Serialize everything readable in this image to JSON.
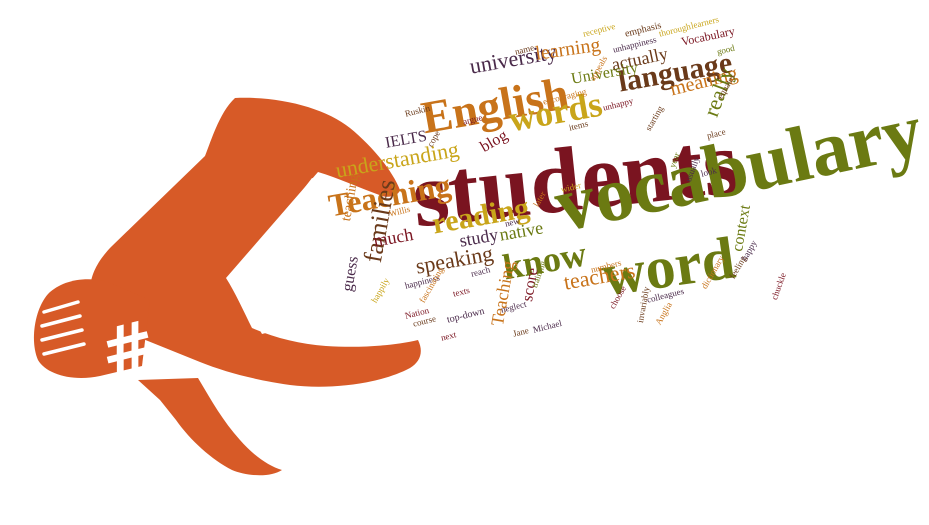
{
  "palette": {
    "megaphone": "#d75a27",
    "maroon": "#7a1420",
    "olive": "#6b7a12",
    "orange": "#c8731a",
    "gold": "#c9a51a",
    "brown": "#6a3a1a",
    "purple": "#4a2a4a"
  },
  "megaphone": {
    "symbol": "#",
    "icon": "megaphone-icon"
  },
  "word_cloud": [
    {
      "text": "students",
      "color": "maroon"
    },
    {
      "text": "vocabulary",
      "color": "olive"
    },
    {
      "text": "English",
      "color": "orange"
    },
    {
      "text": "word",
      "color": "olive"
    },
    {
      "text": "words",
      "color": "gold"
    },
    {
      "text": "language",
      "color": "brown"
    },
    {
      "text": "know",
      "color": "olive"
    },
    {
      "text": "reading",
      "color": "gold"
    },
    {
      "text": "Teaching",
      "color": "orange"
    },
    {
      "text": "university",
      "color": "purple"
    },
    {
      "text": "learning",
      "color": "orange"
    },
    {
      "text": "meaning",
      "color": "orange"
    },
    {
      "text": "actually",
      "color": "brown"
    },
    {
      "text": "University",
      "color": "olive"
    },
    {
      "text": "really",
      "color": "olive"
    },
    {
      "text": "understanding",
      "color": "gold"
    },
    {
      "text": "speaking",
      "color": "brown"
    },
    {
      "text": "teachers",
      "color": "orange"
    },
    {
      "text": "families",
      "color": "brown"
    },
    {
      "text": "much",
      "color": "maroon"
    },
    {
      "text": "study",
      "color": "purple"
    },
    {
      "text": "native",
      "color": "olive"
    },
    {
      "text": "IELTS",
      "color": "purple"
    },
    {
      "text": "blog",
      "color": "maroon"
    },
    {
      "text": "score",
      "color": "maroon"
    },
    {
      "text": "context",
      "color": "olive"
    },
    {
      "text": "teaching",
      "color": "orange"
    },
    {
      "text": "Teaching",
      "color": "orange"
    },
    {
      "text": "guess",
      "color": "purple"
    },
    {
      "text": "Vocabulary",
      "color": "maroon"
    },
    {
      "text": "emphasis",
      "color": "brown"
    },
    {
      "text": "unhappiness",
      "color": "purple"
    },
    {
      "text": "encouraging",
      "color": "orange"
    },
    {
      "text": "appeals",
      "color": "orange"
    },
    {
      "text": "unhappy",
      "color": "maroon"
    },
    {
      "text": "Ruskin",
      "color": "brown"
    },
    {
      "text": "items",
      "color": "brown"
    },
    {
      "text": "top-down",
      "color": "purple"
    },
    {
      "text": "Nation",
      "color": "maroon"
    },
    {
      "text": "Jane",
      "color": "brown"
    },
    {
      "text": "Michael",
      "color": "purple"
    },
    {
      "text": "happiness",
      "color": "purple"
    },
    {
      "text": "fascinating",
      "color": "orange"
    },
    {
      "text": "dictionary",
      "color": "orange"
    },
    {
      "text": "feeling",
      "color": "brown"
    },
    {
      "text": "happy",
      "color": "purple"
    },
    {
      "text": "chuckle",
      "color": "maroon"
    },
    {
      "text": "invariably",
      "color": "brown"
    },
    {
      "text": "choose",
      "color": "maroon"
    },
    {
      "text": "colleagues",
      "color": "purple"
    },
    {
      "text": "numbers",
      "color": "orange"
    },
    {
      "text": "neglect",
      "color": "purple"
    },
    {
      "text": "training",
      "color": "olive"
    },
    {
      "text": "course",
      "color": "brown"
    },
    {
      "text": "next",
      "color": "maroon"
    },
    {
      "text": "texts",
      "color": "maroon"
    },
    {
      "text": "Willis",
      "color": "orange"
    },
    {
      "text": "happily",
      "color": "gold"
    },
    {
      "text": "receptive",
      "color": "gold"
    },
    {
      "text": "thorough",
      "color": "gold"
    },
    {
      "text": "learners",
      "color": "gold"
    },
    {
      "text": "good",
      "color": "olive"
    },
    {
      "text": "equates",
      "color": "brown"
    },
    {
      "text": "name",
      "color": "brown"
    },
    {
      "text": "usually",
      "color": "purple"
    },
    {
      "text": "year",
      "color": "olive"
    },
    {
      "text": "look",
      "color": "purple"
    },
    {
      "text": "wider",
      "color": "gold"
    },
    {
      "text": "place",
      "color": "brown"
    },
    {
      "text": "starting",
      "color": "brown"
    },
    {
      "text": "reach",
      "color": "purple"
    },
    {
      "text": "new",
      "color": "purple"
    },
    {
      "text": "later",
      "color": "orange"
    },
    {
      "text": "Anglia",
      "color": "orange"
    },
    {
      "text": "cope",
      "color": "brown"
    },
    {
      "text": "argue",
      "color": "maroon"
    }
  ]
}
